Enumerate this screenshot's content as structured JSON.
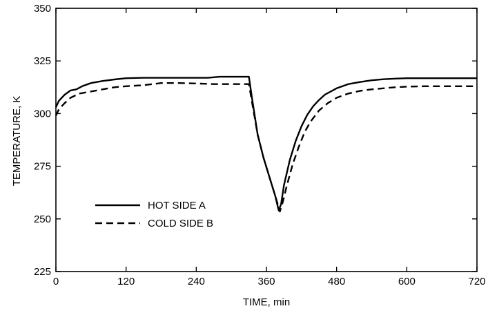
{
  "chart_data": {
    "type": "line",
    "title": "",
    "xlabel": "TIME, min",
    "ylabel": "TEMPERATURE, K",
    "xlim": [
      0,
      720
    ],
    "ylim": [
      225,
      350
    ],
    "xticks": [
      0,
      120,
      240,
      360,
      480,
      600,
      720
    ],
    "yticks": [
      225,
      250,
      275,
      300,
      325,
      350
    ],
    "grid": false,
    "legend_placement": "lower-left",
    "series": [
      {
        "name": "HOT SIDE A",
        "style": "solid",
        "color": "#000000",
        "x": [
          0,
          5,
          15,
          25,
          35,
          45,
          60,
          80,
          100,
          120,
          150,
          180,
          210,
          240,
          260,
          280,
          300,
          315,
          325,
          330,
          335,
          345,
          355,
          365,
          375,
          381,
          385,
          390,
          400,
          410,
          420,
          430,
          440,
          450,
          460,
          480,
          500,
          520,
          540,
          560,
          580,
          600,
          630,
          660,
          690,
          720
        ],
        "y": [
          303,
          306,
          309,
          311,
          311.5,
          313,
          314.5,
          315.5,
          316.2,
          316.8,
          317,
          317,
          317,
          317,
          317,
          317.5,
          317.5,
          317.5,
          317.5,
          317.5,
          308,
          290,
          279,
          270,
          261,
          254,
          257,
          266,
          278,
          287,
          294,
          299.5,
          303.5,
          306.5,
          309,
          312,
          314,
          315,
          315.8,
          316.3,
          316.6,
          316.8,
          316.8,
          316.8,
          316.8,
          316.8
        ]
      },
      {
        "name": "COLD SIDE B",
        "style": "dashed",
        "color": "#000000",
        "x": [
          0,
          5,
          15,
          25,
          40,
          60,
          80,
          100,
          120,
          150,
          180,
          210,
          240,
          270,
          300,
          325,
          330,
          335,
          345,
          355,
          365,
          375,
          383,
          388,
          395,
          405,
          415,
          425,
          435,
          450,
          465,
          480,
          500,
          520,
          540,
          560,
          580,
          600,
          630,
          660,
          690,
          720
        ],
        "y": [
          299,
          302,
          305,
          307.5,
          309.5,
          310.5,
          311.5,
          312.5,
          313,
          313.5,
          314.5,
          314.5,
          314.3,
          314,
          314,
          314,
          314,
          306,
          290,
          279,
          270,
          261,
          253.5,
          258,
          266,
          276,
          284,
          291,
          296,
          301.5,
          305,
          307.5,
          309.5,
          310.8,
          311.5,
          312,
          312.5,
          312.8,
          313,
          313,
          313,
          313
        ]
      }
    ]
  }
}
